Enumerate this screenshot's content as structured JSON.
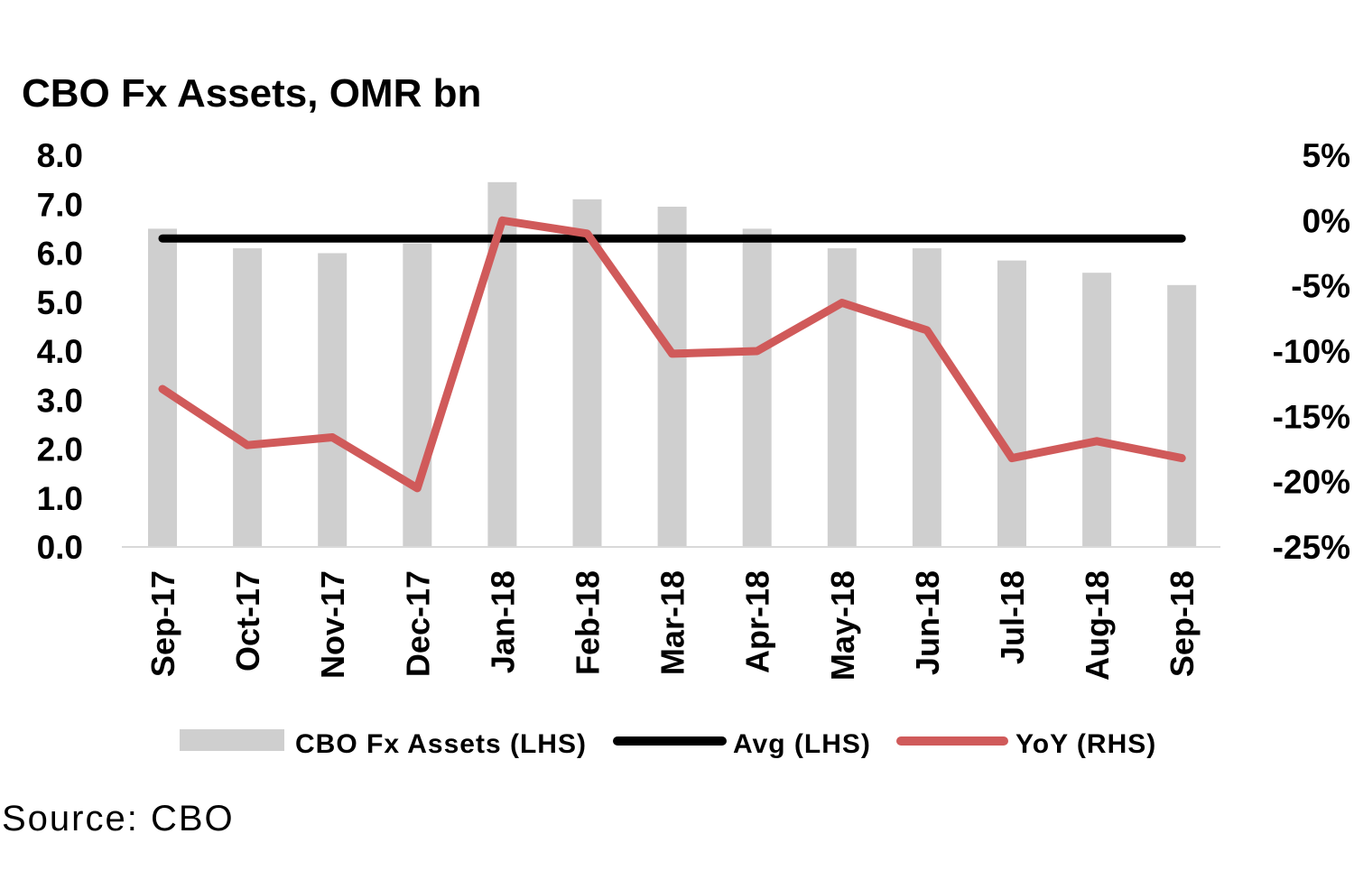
{
  "source_text": "Source: CBO",
  "chart_data": {
    "type": "bar",
    "title": "CBO Fx Assets, OMR bn",
    "categories": [
      "Sep-17",
      "Oct-17",
      "Nov-17",
      "Dec-17",
      "Jan-18",
      "Feb-18",
      "Mar-18",
      "Apr-18",
      "May-18",
      "Jun-18",
      "Jul-18",
      "Aug-18",
      "Sep-18"
    ],
    "series": [
      {
        "name": "CBO Fx Assets (LHS)",
        "type": "bar",
        "axis": "left",
        "color": "#cfcfcf",
        "values": [
          6.5,
          6.1,
          6.0,
          6.2,
          7.45,
          7.1,
          6.95,
          6.5,
          6.1,
          6.1,
          5.85,
          5.6,
          5.35
        ]
      },
      {
        "name": "Avg (LHS)",
        "type": "line",
        "axis": "left",
        "color": "#000000",
        "values": [
          6.3,
          6.3,
          6.3,
          6.3,
          6.3,
          6.3,
          6.3,
          6.3,
          6.3,
          6.3,
          6.3,
          6.3,
          6.3
        ]
      },
      {
        "name": "YoY (RHS)",
        "type": "line",
        "axis": "right",
        "color": "#d05a5a",
        "values": [
          -12.9,
          -17.2,
          -16.6,
          -20.5,
          0.0,
          -1.0,
          -10.2,
          -10.0,
          -6.3,
          -8.4,
          -18.2,
          -16.9,
          -18.2
        ]
      }
    ],
    "y_left": {
      "ylim": [
        0,
        8
      ],
      "ticks": [
        0,
        1,
        2,
        3,
        4,
        5,
        6,
        7,
        8
      ],
      "tick_labels": [
        "0.0",
        "1.0",
        "2.0",
        "3.0",
        "4.0",
        "5.0",
        "6.0",
        "7.0",
        "8.0"
      ]
    },
    "y_right": {
      "ylim": [
        -25,
        5
      ],
      "ticks": [
        -25,
        -20,
        -15,
        -10,
        -5,
        0,
        5
      ],
      "tick_labels": [
        "-25%",
        "-20%",
        "-15%",
        "-10%",
        "-5%",
        "0%",
        "5%"
      ]
    },
    "legend": {
      "position": "bottom",
      "entries": [
        "CBO Fx Assets (LHS)",
        "Avg (LHS)",
        "YoY (RHS)"
      ]
    },
    "grid": false,
    "xlabel": "",
    "ylabel": ""
  }
}
